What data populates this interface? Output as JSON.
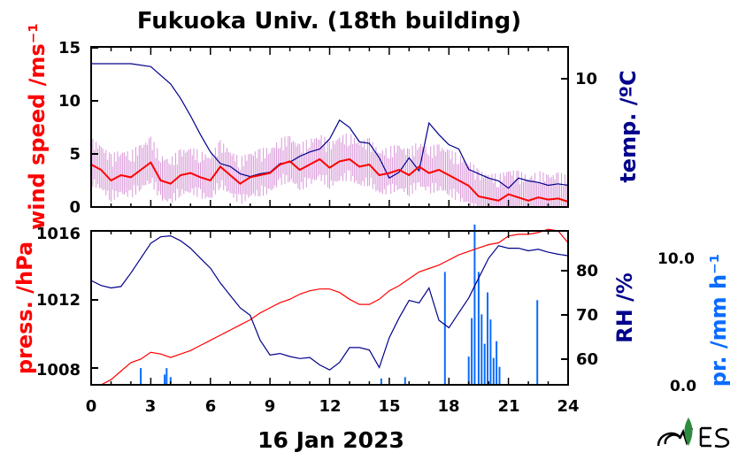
{
  "title": "Fukuoka Univ. (18th building)",
  "xlabel": "16 Jan 2023",
  "colors": {
    "wind": "#ff0000",
    "wind_raw": "#d99ad9",
    "temp": "#00008b",
    "press": "#ff0000",
    "rh": "#00008b",
    "precip": "#0a6cff"
  },
  "chart_data": [
    {
      "type": "line",
      "panel": "top",
      "x_ticks": [
        "0",
        "3",
        "6",
        "9",
        "12",
        "15",
        "18",
        "21",
        "24"
      ],
      "xlim": [
        0,
        24
      ],
      "left_axis": {
        "label": "wind speed /ms⁻¹",
        "ticks": [
          "0",
          "5",
          "10",
          "15"
        ],
        "ylim": [
          0,
          15
        ]
      },
      "right_axis": {
        "label": "temp. /ºC",
        "ticks": [
          "10"
        ],
        "ylim": [
          1.5,
          12.5
        ]
      },
      "series": [
        {
          "axis": "left",
          "x": [
            0,
            0.5,
            1,
            1.5,
            2,
            2.5,
            3,
            3.5,
            4,
            4.5,
            5,
            5.5,
            6,
            6.5,
            7,
            7.5,
            8,
            8.5,
            9,
            9.5,
            10,
            10.5,
            11,
            11.5,
            12,
            12.5,
            13,
            13.5,
            14,
            14.5,
            15,
            15.5,
            16,
            16.5,
            17,
            17.5,
            18,
            18.5,
            19,
            19.5,
            20,
            20.5,
            21,
            21.5,
            22,
            22.5,
            23,
            23.5,
            24
          ],
          "y": [
            4.0,
            3.5,
            2.5,
            3.0,
            2.8,
            3.5,
            4.2,
            2.5,
            2.2,
            3.0,
            3.2,
            2.8,
            2.5,
            3.8,
            3.0,
            2.2,
            2.8,
            3.0,
            3.2,
            4.0,
            4.3,
            3.5,
            4.0,
            4.5,
            3.7,
            4.3,
            4.5,
            3.8,
            4.0,
            3.0,
            3.2,
            3.5,
            3.0,
            3.8,
            3.2,
            3.5,
            3.0,
            2.5,
            2.0,
            1.0,
            0.8,
            0.6,
            1.2,
            0.9,
            0.6,
            0.9,
            0.7,
            0.8,
            0.5
          ]
        },
        {
          "axis": "right",
          "x": [
            0,
            1,
            2,
            3,
            4,
            4.5,
            5,
            5.5,
            6,
            6.5,
            7,
            7.5,
            8,
            8.5,
            9,
            9.5,
            10,
            10.5,
            11,
            11.5,
            12,
            12.5,
            13,
            13.5,
            14,
            14.5,
            15,
            15.5,
            16,
            16.5,
            17,
            17.5,
            18,
            18.5,
            19,
            19.5,
            20,
            20.5,
            21,
            21.5,
            22,
            22.5,
            23,
            23.5,
            24
          ],
          "y": [
            11.4,
            11.4,
            11.4,
            11.2,
            10.0,
            9.0,
            7.8,
            6.5,
            5.3,
            4.5,
            4.3,
            3.8,
            3.6,
            3.8,
            3.9,
            4.5,
            4.6,
            5.0,
            5.3,
            5.5,
            6.2,
            7.5,
            7.0,
            6.0,
            5.9,
            4.9,
            3.5,
            3.9,
            4.9,
            4.0,
            7.3,
            6.5,
            5.8,
            5.5,
            4.1,
            3.8,
            3.5,
            3.3,
            2.8,
            3.5,
            3.3,
            3.2,
            3.0,
            3.1,
            3.0
          ]
        }
      ]
    },
    {
      "type": "line",
      "panel": "bottom",
      "x_ticks": [
        "0",
        "3",
        "6",
        "9",
        "12",
        "15",
        "18",
        "21",
        "24"
      ],
      "xlim": [
        0,
        24
      ],
      "left_axis": {
        "label": "press. /hPa",
        "ticks": [
          "1008",
          "1012",
          "1016"
        ],
        "ylim": [
          1007,
          1016
        ]
      },
      "right_axis": {
        "label": "RH /%",
        "ticks": [
          "60",
          "70",
          "80"
        ],
        "ylim": [
          54.5,
          85.5
        ]
      },
      "precip_axis": {
        "label": "pr. /mm h⁻¹",
        "ticks": [
          "0.0",
          "10.0"
        ],
        "ylim": [
          0,
          12
        ]
      },
      "series": [
        {
          "axis": "left",
          "x": [
            0,
            0.5,
            1,
            1.5,
            2,
            2.5,
            3,
            3.5,
            4,
            4.5,
            5,
            5.5,
            6,
            6.5,
            7,
            7.5,
            8,
            8.5,
            9,
            9.5,
            10,
            10.5,
            11,
            11.5,
            12,
            12.5,
            13,
            13.5,
            14,
            14.5,
            15,
            15.5,
            16,
            16.5,
            17,
            17.5,
            18,
            18.5,
            19,
            19.5,
            20,
            20.5,
            21,
            21.5,
            22,
            22.5,
            23,
            23.5,
            24
          ],
          "y": [
            1007.0,
            1007.0,
            1007.3,
            1007.8,
            1008.3,
            1008.5,
            1008.9,
            1008.8,
            1008.6,
            1008.8,
            1009.0,
            1009.3,
            1009.6,
            1009.9,
            1010.2,
            1010.5,
            1010.8,
            1011.2,
            1011.5,
            1011.8,
            1012.0,
            1012.3,
            1012.5,
            1012.6,
            1012.6,
            1012.4,
            1012.0,
            1011.7,
            1011.7,
            1012.0,
            1012.5,
            1012.8,
            1013.2,
            1013.6,
            1013.8,
            1014.0,
            1014.3,
            1014.6,
            1014.8,
            1015.0,
            1015.2,
            1015.3,
            1015.7,
            1015.8,
            1015.8,
            1015.9,
            1016.1,
            1016.0,
            1015.3
          ]
        },
        {
          "axis": "right",
          "x": [
            0,
            0.5,
            1,
            1.5,
            2,
            2.5,
            3,
            3.5,
            4,
            4.5,
            5,
            5.5,
            6,
            6.5,
            7,
            7.5,
            8,
            8.5,
            9,
            9.5,
            10,
            10.5,
            11,
            11.5,
            12,
            12.5,
            13,
            13.5,
            14,
            14.5,
            15,
            15.5,
            16,
            16.5,
            17,
            17.5,
            18,
            18.5,
            19,
            19.5,
            20,
            20.5,
            21,
            21.5,
            22,
            22.5,
            23,
            23.5,
            24
          ],
          "y": [
            75.5,
            74.5,
            74.0,
            74.3,
            77.0,
            80.0,
            83.0,
            84.3,
            84.5,
            83.5,
            82.0,
            80.0,
            78.0,
            75.0,
            72.5,
            70.0,
            68.5,
            63.5,
            60.5,
            60.8,
            60.2,
            59.8,
            60.0,
            58.5,
            57.5,
            59.0,
            62.0,
            62.0,
            61.5,
            58.0,
            64.0,
            68.0,
            71.5,
            71.0,
            74.0,
            67.5,
            66.0,
            69.0,
            72.0,
            76.0,
            80.0,
            82.5,
            82.0,
            82.0,
            81.5,
            81.8,
            81.2,
            80.8,
            80.5
          ]
        },
        {
          "axis": "precip",
          "type": "bar",
          "x": [
            2.5,
            3.7,
            3.8,
            4.0,
            14.6,
            15.8,
            17.8,
            19.0,
            19.15,
            19.3,
            19.5,
            19.65,
            19.8,
            19.95,
            20.1,
            20.25,
            20.4,
            20.55,
            22.45
          ],
          "y": [
            1.3,
            0.8,
            1.3,
            0.6,
            0.5,
            0.6,
            8.8,
            2.2,
            5.2,
            12.5,
            8.8,
            5.5,
            3.2,
            7.2,
            5.1,
            2.1,
            3.4,
            1.4,
            6.6
          ]
        }
      ]
    }
  ]
}
